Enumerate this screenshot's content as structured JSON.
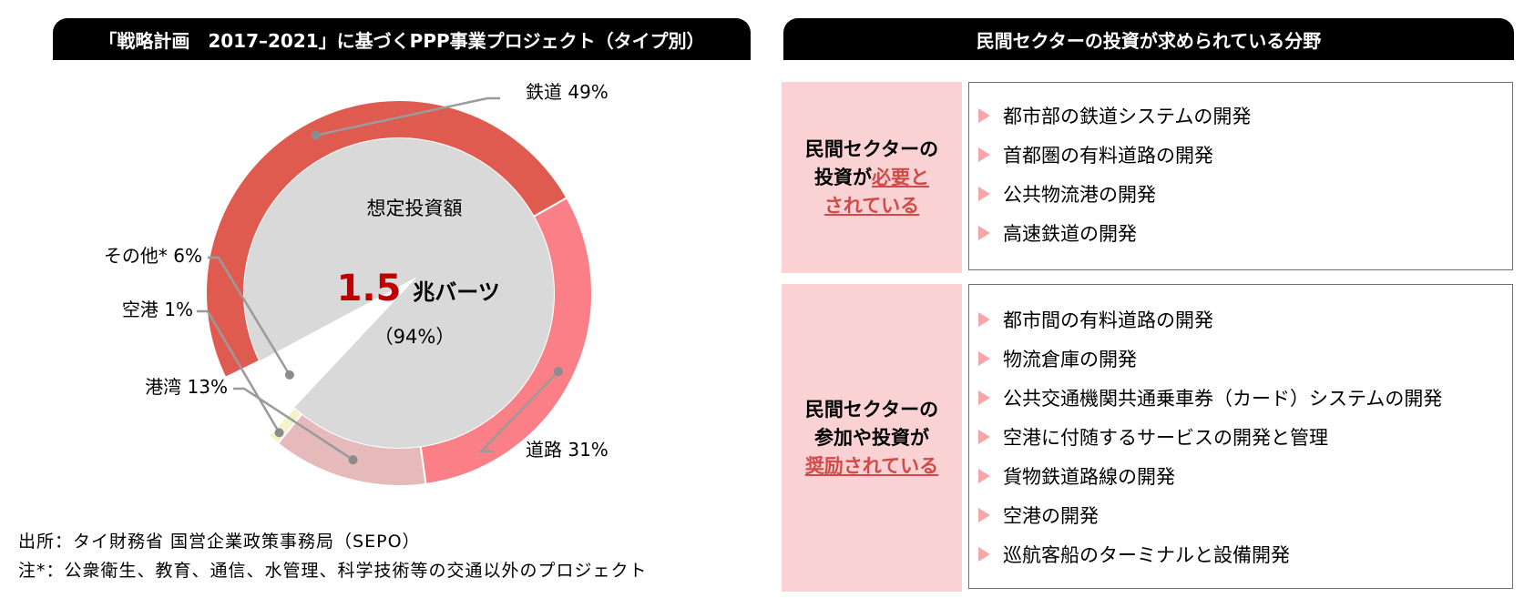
{
  "left_panel": {
    "header": "「戦略計画　2017–2021」に基づくPPP事業プロジェクト（タイプ別）"
  },
  "chart_data": {
    "type": "pie",
    "donut": true,
    "center": {
      "title": "想定投資額",
      "value": "1.5",
      "unit": "兆バーツ",
      "note": "（94%）"
    },
    "slices": [
      {
        "label": "鉄道 49%",
        "name": "鉄道",
        "value": 49,
        "color": "#e05b4f"
      },
      {
        "label": "道路 31%",
        "name": "道路",
        "value": 31,
        "color": "#fb7f86"
      },
      {
        "label": "港湾 13%",
        "name": "港湾",
        "value": 13,
        "color": "#e6b9bb"
      },
      {
        "label": "空港 1%",
        "name": "空港",
        "value": 1,
        "color": "#f3f2c8"
      },
      {
        "label": "その他* 6%",
        "name": "その他*",
        "value": 6,
        "color": "#ffffff"
      }
    ]
  },
  "source": {
    "line1": "出所：タイ財務省 国営企業政策事務局（SEPO）",
    "line2": "注*：公衆衛生、教育、通信、水管理、科学技術等の交通以外のプロジェクト"
  },
  "right_panel": {
    "header": "民間セクターの投資が求められている分野",
    "groups": [
      {
        "category_lines": [
          "民間セクターの"
        ],
        "category_mixed": {
          "plain": "投資が",
          "underlined": "必要と"
        },
        "category_tail": "されている",
        "items": [
          "都市部の鉄道システムの開発",
          "首都圏の有料道路の開発",
          "公共物流港の開発",
          "高速鉄道の開発"
        ]
      },
      {
        "category_lines": [
          "民間セクターの",
          "参加や投資が"
        ],
        "category_tail": "奨励されている",
        "items": [
          "都市間の有料道路の開発",
          "物流倉庫の開発",
          "公共交通機関共通乗車券（カード）システムの開発",
          "空港に付随するサービスの開発と管理",
          "貨物鉄道路線の開発",
          "空港の開発",
          "巡航客船のターミナルと設備開発"
        ]
      }
    ]
  }
}
